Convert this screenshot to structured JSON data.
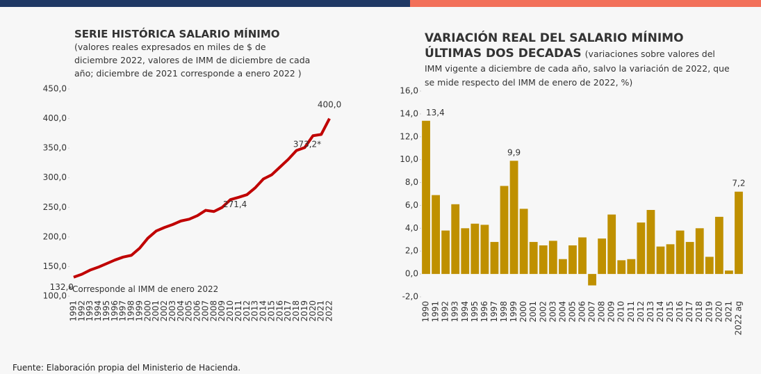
{
  "chart_data": [
    {
      "type": "line",
      "title": "SERIE HISTÓRICA SALARIO MÍNIMO",
      "subtitle": "(valores reales expresados en miles de $ de diciembre 2022, valores de IMM de diciembre de cada año; diciembre de 2021 corresponde a enero 2022 )",
      "annotation": "*Corresponde al IMM de enero 2022",
      "categories": [
        "1991",
        "1992",
        "1993",
        "1994",
        "1995",
        "1996",
        "1997",
        "1998",
        "1999",
        "2000",
        "2001",
        "2002",
        "2003",
        "2004",
        "2005",
        "2006",
        "2007",
        "2008",
        "2009",
        "2010",
        "2011",
        "2012",
        "2013",
        "2014",
        "2015",
        "2016",
        "2017",
        "2018",
        "2019",
        "2020",
        "2021",
        "2022"
      ],
      "values": [
        132.0,
        137,
        144,
        149,
        155,
        161,
        166,
        169,
        181,
        198,
        210,
        216,
        221,
        227,
        230,
        236,
        245,
        243,
        250,
        263,
        267,
        271.4,
        283,
        298,
        305,
        318,
        331,
        346,
        351,
        371,
        373.2,
        400.0
      ],
      "value_labels": [
        "132,0",
        null,
        null,
        null,
        null,
        null,
        null,
        null,
        null,
        null,
        null,
        null,
        null,
        null,
        null,
        null,
        null,
        null,
        null,
        null,
        null,
        "271,4",
        null,
        null,
        null,
        null,
        null,
        null,
        null,
        null,
        "373,2*",
        "400,0"
      ],
      "color": "#c00000",
      "ylim": [
        100,
        450
      ],
      "yticks": [
        {
          "value": 100,
          "label": "100,0"
        },
        {
          "value": 150,
          "label": "150,0"
        },
        {
          "value": 200,
          "label": "200,0"
        },
        {
          "value": 250,
          "label": "250,0"
        },
        {
          "value": 300,
          "label": "300,0"
        },
        {
          "value": 350,
          "label": "350,0"
        },
        {
          "value": 400,
          "label": "400,0"
        },
        {
          "value": 450,
          "label": "450,0"
        }
      ]
    },
    {
      "type": "bar",
      "title": "VARIACIÓN REAL DEL SALARIO MÍNIMO ÚLTIMAS DOS DECADAS",
      "subtitle": "(variaciones sobre valores del IMM vigente a diciembre de cada año, salvo la variación de 2022, que se mide respecto del IMM de enero de 2022, %)",
      "categories": [
        "1990",
        "1991",
        "1992",
        "1993",
        "1994",
        "1995",
        "1996",
        "1997",
        "1998",
        "1999",
        "2000",
        "2001",
        "2002",
        "2003",
        "2004",
        "2005",
        "2006",
        "2007",
        "2008",
        "2009",
        "2010",
        "2011",
        "2012",
        "2013",
        "2014",
        "2015",
        "2016",
        "2017",
        "2018",
        "2019",
        "2020",
        "2021",
        "2022 ag"
      ],
      "values": [
        13.4,
        6.9,
        3.8,
        6.1,
        4.0,
        4.4,
        4.3,
        2.8,
        7.7,
        9.9,
        5.7,
        2.8,
        2.5,
        2.9,
        1.3,
        2.5,
        3.2,
        -1.0,
        3.1,
        5.2,
        1.2,
        1.3,
        4.5,
        5.6,
        2.4,
        2.6,
        3.8,
        2.8,
        4.0,
        1.5,
        5.0,
        0.3,
        7.2
      ],
      "value_labels": [
        "13,4",
        null,
        null,
        null,
        null,
        null,
        null,
        null,
        null,
        "9,9",
        null,
        null,
        null,
        null,
        null,
        null,
        null,
        null,
        null,
        null,
        null,
        null,
        null,
        null,
        null,
        null,
        null,
        null,
        null,
        null,
        null,
        null,
        "7,2"
      ],
      "color": "#bf9000",
      "ylim": [
        -2,
        16
      ],
      "yticks": [
        {
          "value": -2,
          "label": "-2,0"
        },
        {
          "value": 0,
          "label": "0,0"
        },
        {
          "value": 2,
          "label": "2,0"
        },
        {
          "value": 4,
          "label": "4,0"
        },
        {
          "value": 6,
          "label": "6,0"
        },
        {
          "value": 8,
          "label": "8,0"
        },
        {
          "value": 10,
          "label": "10,0"
        },
        {
          "value": 12,
          "label": "12,0"
        },
        {
          "value": 14,
          "label": "14,0"
        },
        {
          "value": 16,
          "label": "16,0"
        }
      ]
    }
  ],
  "source": "Fuente: Elaboración propia del Ministerio de Hacienda."
}
